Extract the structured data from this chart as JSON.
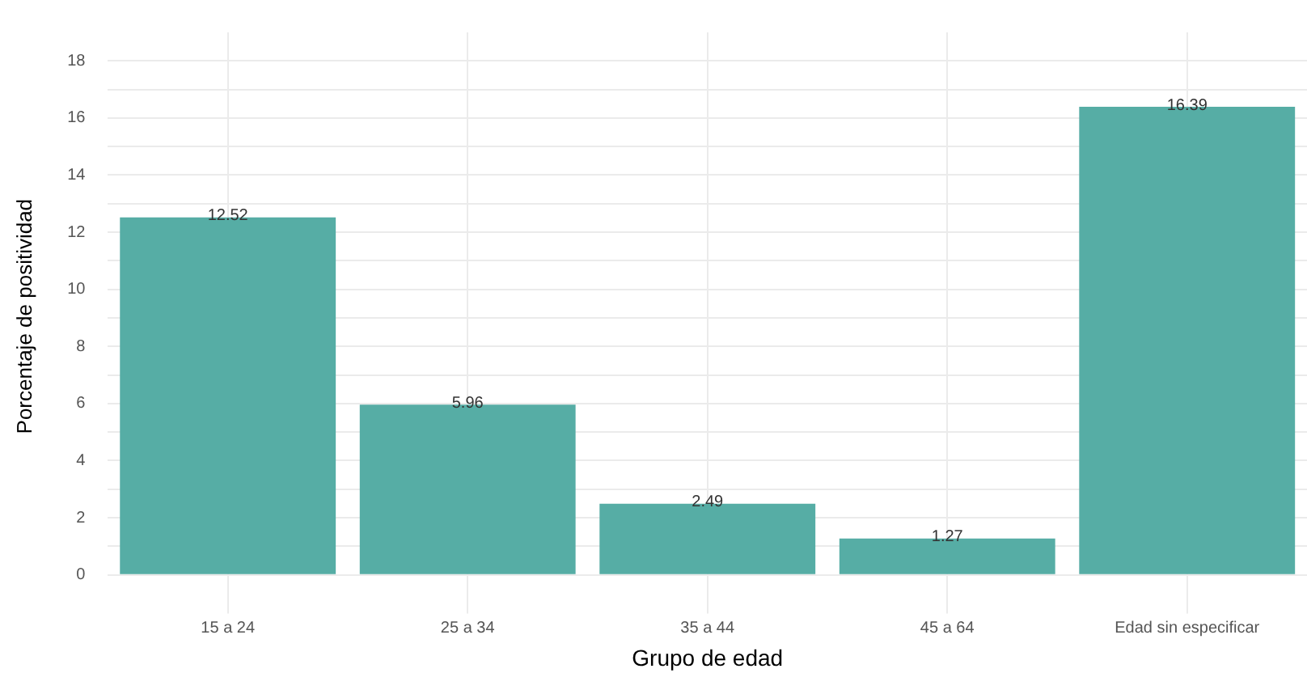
{
  "chart_data": {
    "type": "bar",
    "xlabel": "Grupo de edad",
    "ylabel": "Porcentaje de positividad",
    "categories": [
      "15 a 24",
      "25 a 34",
      "35 a 44",
      "45 a 64",
      "Edad sin especificar"
    ],
    "values": [
      12.52,
      5.96,
      2.49,
      1.27,
      16.39
    ],
    "color": "#56ada5",
    "ylim": [
      -0.9,
      19
    ],
    "yticks": [
      0,
      {
        "value": 1,
        "label": null
      },
      2,
      {
        "value": 3,
        "label": null
      },
      4,
      {
        "value": 5,
        "label": null
      },
      6,
      {
        "value": 7,
        "label": null
      },
      8,
      {
        "value": 9,
        "label": null
      },
      10,
      {
        "value": 11,
        "label": null
      },
      12,
      {
        "value": 13,
        "label": null
      },
      14,
      {
        "value": 15,
        "label": null
      },
      16,
      {
        "value": 17,
        "label": null
      },
      18
    ],
    "grid": true,
    "data_labels": true,
    "legend": false
  }
}
